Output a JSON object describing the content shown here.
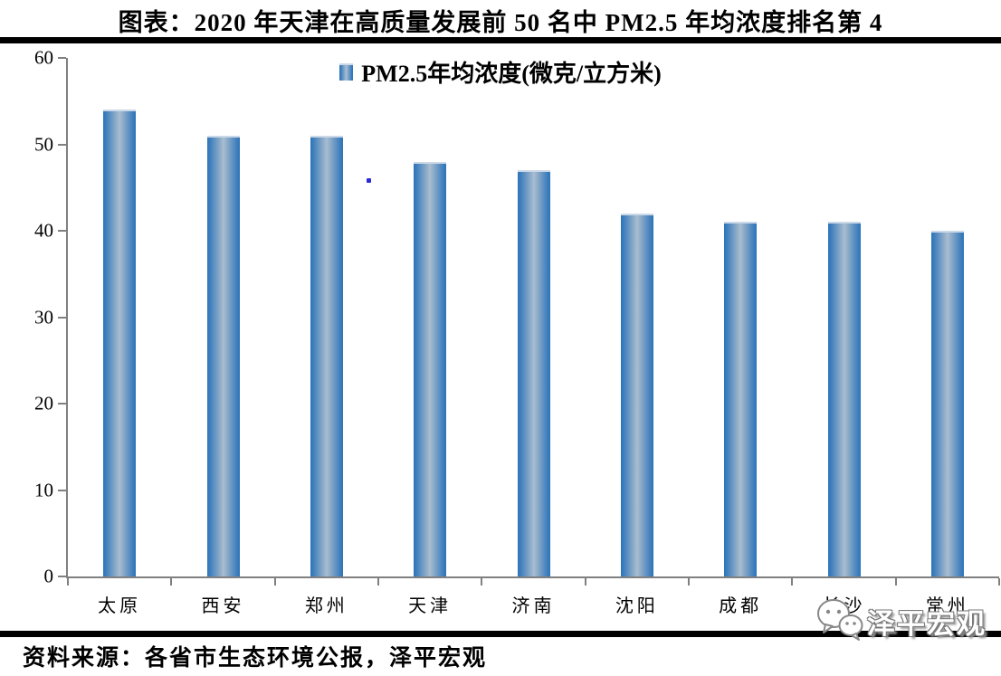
{
  "title": "图表：2020 年天津在高质量发展前 50 名中 PM2.5 年均浓度排名第 4",
  "legend": {
    "marker": "bar-gradient-swatch",
    "label": "PM2.5年均浓度(微克/立方米)"
  },
  "source": {
    "text": "资料来源：各省市生态环境公报，泽平宏观"
  },
  "watermark": {
    "logo": "wechat-bubbles-icon",
    "text": "泽平宏观"
  },
  "colors": {
    "bar_edge": "#2E75B6",
    "bar_center": "#A9BED2",
    "bar_top_highlight": "#CBD8E8",
    "axis": "#808080",
    "rule": "#000000",
    "text": "#000000",
    "stray_dot": "#2B2BD6"
  },
  "chart_data": {
    "type": "bar",
    "categories": [
      "太原",
      "西安",
      "郑州",
      "天津",
      "济南",
      "沈阳",
      "成都",
      "长沙",
      "常州"
    ],
    "values": [
      54,
      51,
      51,
      48,
      47,
      42,
      41,
      41,
      40
    ],
    "title": "图表：2020 年天津在高质量发展前 50 名中 PM2.5 年均浓度排名第 4",
    "legend_entries": [
      "PM2.5年均浓度(微克/立方米)"
    ],
    "legend_position": "top-center",
    "xlabel": "",
    "ylabel": "",
    "ylim": [
      0,
      60
    ],
    "yticks": [
      0,
      10,
      20,
      30,
      40,
      50,
      60
    ],
    "grid": false,
    "bar_style": "vertical cylinder gradient, blue edges to light blue-gray center"
  }
}
